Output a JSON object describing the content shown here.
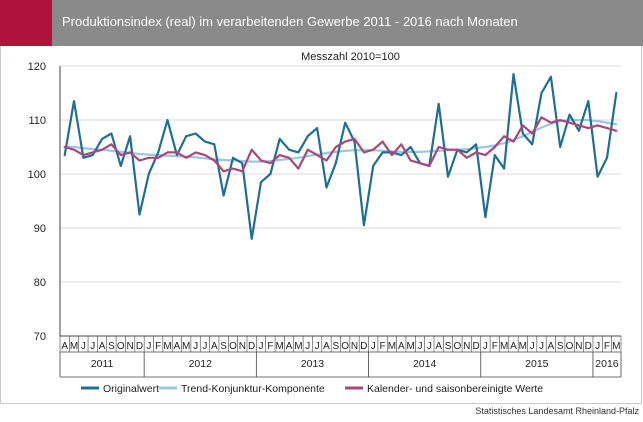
{
  "header": {
    "title": "Produktionsindex (real) im verarbeitenden Gewerbe 2011 - 2016 nach Monaten"
  },
  "source": "Statistisches Landesamt Rheinland-Pfalz",
  "colors": {
    "header_bg": "#8a8a8a",
    "accent": "#b0123b",
    "original": "#1f6e94",
    "trend": "#9cc6e0",
    "seasonal": "#a8477a"
  },
  "chart_data": {
    "type": "line",
    "subtitle": "Messzahl 2010=100",
    "ylim": [
      70,
      120
    ],
    "yticks": [
      70,
      80,
      90,
      100,
      110,
      120
    ],
    "grid": "horizontal",
    "legend_position": "bottom",
    "x_month_labels": [
      "A",
      "M",
      "J",
      "J",
      "A",
      "S",
      "O",
      "N",
      "D",
      "J",
      "F",
      "M",
      "A",
      "M",
      "J",
      "J",
      "A",
      "S",
      "O",
      "N",
      "D",
      "J",
      "F",
      "M",
      "A",
      "M",
      "J",
      "J",
      "A",
      "S",
      "O",
      "N",
      "D",
      "J",
      "F",
      "M",
      "A",
      "M",
      "J",
      "J",
      "A",
      "S",
      "O",
      "N",
      "D",
      "J",
      "F",
      "M",
      "A",
      "M",
      "J",
      "J",
      "A",
      "S",
      "O",
      "N",
      "D",
      "J",
      "F",
      "M"
    ],
    "x_year_groups": [
      {
        "label": "2011",
        "months": 9
      },
      {
        "label": "2012",
        "months": 12
      },
      {
        "label": "2013",
        "months": 12
      },
      {
        "label": "2014",
        "months": 12
      },
      {
        "label": "2015",
        "months": 12
      },
      {
        "label": "2016",
        "months": 3
      }
    ],
    "series": [
      {
        "name": "Originalwert",
        "color": "#1f6e94",
        "values": [
          103.5,
          113.5,
          103,
          103.5,
          106.5,
          107.5,
          101.5,
          107,
          92.5,
          100,
          104,
          110,
          103.5,
          107,
          107.5,
          106,
          105.5,
          96,
          103,
          102,
          88,
          98.5,
          100,
          106.5,
          104.5,
          104,
          107,
          108.5,
          97.5,
          102,
          109.5,
          106,
          90.5,
          101.5,
          104,
          104,
          103.5,
          105,
          102,
          101.5,
          113,
          99.5,
          104.5,
          104,
          105.5,
          92,
          103.5,
          101,
          118.5,
          107.5,
          105.5,
          115,
          118,
          105,
          111,
          108,
          113.5,
          99.5,
          103,
          115
        ]
      },
      {
        "name": "Trend-Konjunktur-Komponente",
        "color": "#9cc6e0",
        "values": [
          105,
          105,
          104.8,
          104.6,
          104.5,
          104.3,
          104.1,
          103.9,
          103.7,
          103.6,
          103.5,
          103.4,
          103.3,
          103.2,
          103.1,
          102.9,
          102.7,
          102.6,
          102.5,
          102.4,
          102.3,
          102.3,
          102.4,
          102.6,
          102.8,
          103,
          103.3,
          103.6,
          103.9,
          104.1,
          104.3,
          104.4,
          104.4,
          104.4,
          104.3,
          104.2,
          104.1,
          104.1,
          104.1,
          104.2,
          104.3,
          104.4,
          104.5,
          104.6,
          104.8,
          105,
          105.3,
          105.7,
          106.3,
          107,
          107.8,
          108.6,
          109.3,
          109.8,
          110,
          110,
          110,
          109.8,
          109.5,
          109.2
        ]
      },
      {
        "name": "Kalender- und saisonbereinigte Werte",
        "color": "#a8477a",
        "values": [
          105,
          104.5,
          103.5,
          104,
          104.5,
          105.5,
          103.5,
          104,
          102.5,
          103,
          103,
          104,
          104,
          103,
          104,
          103.5,
          102.5,
          100.5,
          101,
          100.5,
          104.5,
          102.5,
          102,
          103.5,
          103,
          101,
          104.5,
          103.5,
          102.5,
          105,
          106,
          106.5,
          104,
          104.5,
          106,
          103.5,
          105.5,
          102.5,
          102,
          101.5,
          105,
          104.5,
          104.5,
          103,
          104,
          103.5,
          105,
          107,
          106,
          109,
          107.5,
          110.5,
          109.5,
          110,
          109.5,
          109,
          108.5,
          109,
          108.5,
          108
        ]
      }
    ]
  }
}
